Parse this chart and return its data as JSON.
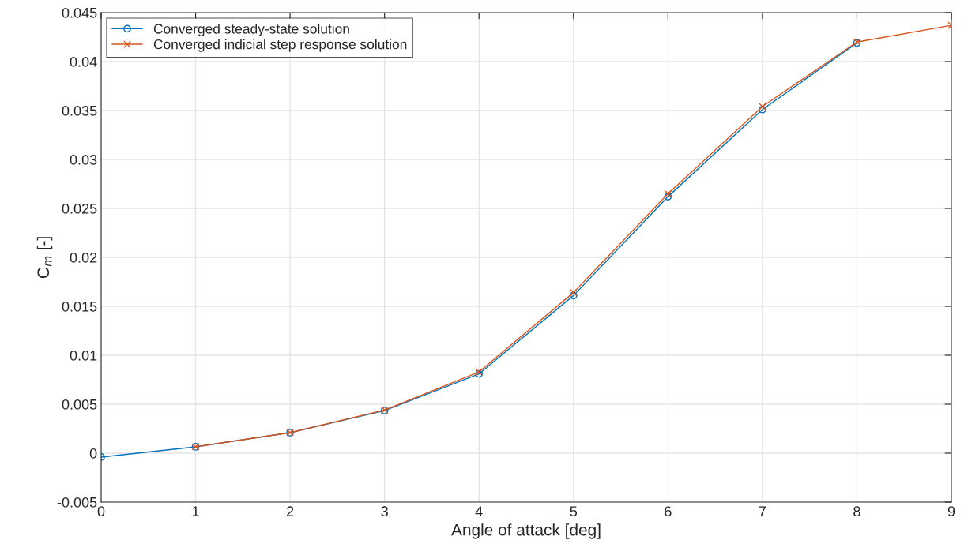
{
  "chart_data": {
    "type": "line",
    "xlabel": "Angle of attack [deg]",
    "ylabel": "C$_{m}$ [-]",
    "xlim": [
      0,
      9
    ],
    "xticks": [
      0,
      1,
      2,
      3,
      4,
      5,
      6,
      7,
      8,
      9
    ],
    "ylim": [
      -0.005,
      0.045
    ],
    "yticks": [
      -0.005,
      0,
      0.005,
      0.01,
      0.015,
      0.02,
      0.025,
      0.03,
      0.035,
      0.04,
      0.045
    ],
    "grid": true,
    "legend": "top left",
    "line_style": "solid",
    "series": [
      {
        "name": "Converged steady-state solution",
        "color": "#0072bd",
        "marker": "circle",
        "x": [
          0,
          1,
          2,
          3,
          4,
          5,
          6,
          7,
          8
        ],
        "values": [
          -0.0004,
          0.00065,
          0.0021,
          0.00435,
          0.0081,
          0.0161,
          0.0262,
          0.0351,
          0.0419
        ]
      },
      {
        "name": "Converged indicial step response solution",
        "color": "#d95319",
        "marker": "cross",
        "x": [
          1,
          2,
          3,
          4,
          5,
          6,
          7,
          8,
          9
        ],
        "values": [
          0.00065,
          0.0021,
          0.0044,
          0.0083,
          0.0164,
          0.0265,
          0.0354,
          0.042,
          0.0437
        ]
      }
    ]
  }
}
